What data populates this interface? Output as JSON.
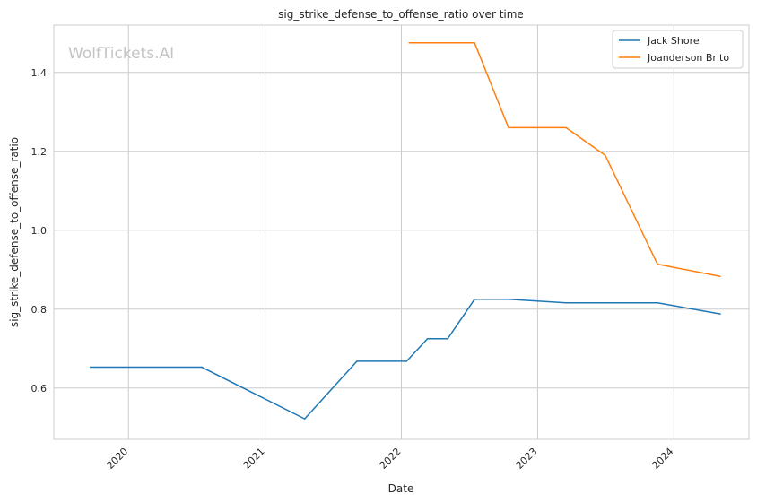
{
  "watermark": "WolfTickets.AI",
  "chart_data": {
    "type": "line",
    "title": "sig_strike_defense_to_offense_ratio over time",
    "xlabel": "Date",
    "ylabel": "sig_strike_defense_to_offense_ratio",
    "xlim": [
      "2019-06-15",
      "2024-07-20"
    ],
    "ylim": [
      0.47,
      1.52
    ],
    "x_ticks": [
      "2020",
      "2021",
      "2022",
      "2023",
      "2024"
    ],
    "y_ticks": [
      "0.6",
      "0.8",
      "1.0",
      "1.2",
      "1.4"
    ],
    "grid": true,
    "legend_position": "top-right",
    "series": [
      {
        "name": "Jack Shore",
        "color": "#1f77b4",
        "points": [
          {
            "x": "2019-09-21",
            "y": 0.653
          },
          {
            "x": "2020-07-15",
            "y": 0.653
          },
          {
            "x": "2021-04-17",
            "y": 0.522
          },
          {
            "x": "2021-09-04",
            "y": 0.668
          },
          {
            "x": "2022-01-15",
            "y": 0.668
          },
          {
            "x": "2022-03-12",
            "y": 0.725
          },
          {
            "x": "2022-05-05",
            "y": 0.725
          },
          {
            "x": "2022-07-16",
            "y": 0.825
          },
          {
            "x": "2022-10-15",
            "y": 0.825
          },
          {
            "x": "2023-03-18",
            "y": 0.816
          },
          {
            "x": "2023-11-18",
            "y": 0.816
          },
          {
            "x": "2024-05-04",
            "y": 0.788
          }
        ]
      },
      {
        "name": "Joanderson Brito",
        "color": "#ff7f0e",
        "points": [
          {
            "x": "2022-01-22",
            "y": 1.475
          },
          {
            "x": "2022-07-16",
            "y": 1.475
          },
          {
            "x": "2022-10-15",
            "y": 1.26
          },
          {
            "x": "2023-03-18",
            "y": 1.26
          },
          {
            "x": "2023-07-01",
            "y": 1.19
          },
          {
            "x": "2023-11-18",
            "y": 0.914
          },
          {
            "x": "2024-05-04",
            "y": 0.883
          }
        ]
      }
    ]
  }
}
